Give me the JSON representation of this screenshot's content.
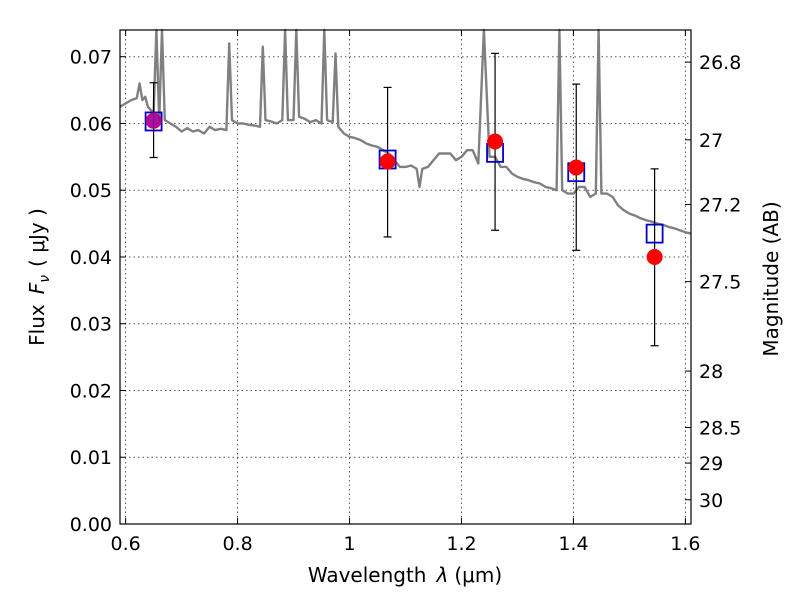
{
  "chart_data": {
    "type": "scatter",
    "xlabel": "Wavelength",
    "xlabel_symbol": "λ",
    "xlabel_unit": "(μm)",
    "ylabel": "Flux",
    "ylabel_symbol": "F",
    "ylabel_subscript": "ν",
    "ylabel_unit": "( μJy )",
    "y2label": "Magnitude (AB)",
    "xlim": [
      0.59,
      1.61
    ],
    "ylim": [
      0.0,
      0.074
    ],
    "grid": true,
    "x_ticks": [
      0.6,
      0.8,
      1.0,
      1.2,
      1.4,
      1.6
    ],
    "x_tick_labels": [
      "0.6",
      "0.8",
      "1",
      "1.2",
      "1.4",
      "1.6"
    ],
    "y_ticks": [
      0.0,
      0.01,
      0.02,
      0.03,
      0.04,
      0.05,
      0.06,
      0.07
    ],
    "y_tick_labels": [
      "0.00",
      "0.01",
      "0.02",
      "0.03",
      "0.04",
      "0.05",
      "0.06",
      "0.07"
    ],
    "y2_ticks": [
      26.8,
      27,
      27.2,
      27.5,
      28,
      28.5,
      29,
      30
    ],
    "y2_tick_labels": [
      "26.8",
      "27",
      "27.2",
      "27.5",
      "28",
      "28.5",
      "29",
      "30"
    ],
    "series": [
      {
        "kind": "spectrum",
        "color": "#808080",
        "x": [
          0.59,
          0.6,
          0.61,
          0.62,
          0.625,
          0.63,
          0.635,
          0.64,
          0.65,
          0.655,
          0.66,
          0.665,
          0.67,
          0.68,
          0.69,
          0.7,
          0.71,
          0.72,
          0.73,
          0.74,
          0.75,
          0.76,
          0.77,
          0.78,
          0.785,
          0.79,
          0.8,
          0.81,
          0.82,
          0.83,
          0.84,
          0.845,
          0.85,
          0.86,
          0.87,
          0.88,
          0.885,
          0.89,
          0.9,
          0.905,
          0.91,
          0.92,
          0.93,
          0.94,
          0.95,
          0.955,
          0.96,
          0.97,
          0.975,
          0.98,
          0.99,
          1.0,
          1.01,
          1.02,
          1.03,
          1.04,
          1.05,
          1.06,
          1.07,
          1.08,
          1.09,
          1.1,
          1.11,
          1.12,
          1.125,
          1.13,
          1.14,
          1.15,
          1.16,
          1.17,
          1.18,
          1.19,
          1.2,
          1.21,
          1.22,
          1.23,
          1.24,
          1.25,
          1.26,
          1.27,
          1.28,
          1.29,
          1.3,
          1.31,
          1.32,
          1.33,
          1.34,
          1.35,
          1.36,
          1.37,
          1.375,
          1.38,
          1.39,
          1.4,
          1.41,
          1.42,
          1.43,
          1.44,
          1.445,
          1.45,
          1.46,
          1.47,
          1.48,
          1.49,
          1.5,
          1.51,
          1.52,
          1.53,
          1.54,
          1.55,
          1.56,
          1.57,
          1.58,
          1.59,
          1.6,
          1.61
        ],
        "y": [
          0.0625,
          0.063,
          0.0635,
          0.0638,
          0.066,
          0.0635,
          0.064,
          0.0625,
          0.0615,
          0.074,
          0.0605,
          0.074,
          0.0605,
          0.06,
          0.0595,
          0.0588,
          0.0593,
          0.0588,
          0.059,
          0.0585,
          0.0595,
          0.059,
          0.0592,
          0.059,
          0.072,
          0.0605,
          0.06,
          0.06,
          0.0598,
          0.0597,
          0.0595,
          0.0715,
          0.0605,
          0.0603,
          0.06,
          0.0605,
          0.074,
          0.0605,
          0.0605,
          0.074,
          0.061,
          0.0607,
          0.0602,
          0.0605,
          0.06,
          0.074,
          0.0605,
          0.0602,
          0.0705,
          0.0595,
          0.0585,
          0.058,
          0.0578,
          0.0575,
          0.057,
          0.0567,
          0.0565,
          0.056,
          0.0555,
          0.0545,
          0.0535,
          0.0535,
          0.0537,
          0.0532,
          0.0505,
          0.0532,
          0.0535,
          0.0545,
          0.0555,
          0.0555,
          0.0555,
          0.0545,
          0.055,
          0.056,
          0.056,
          0.054,
          0.074,
          0.055,
          0.055,
          0.0535,
          0.0535,
          0.0525,
          0.052,
          0.0517,
          0.0515,
          0.0512,
          0.051,
          0.0505,
          0.0503,
          0.05,
          0.074,
          0.05,
          0.0495,
          0.0495,
          0.0505,
          0.0505,
          0.049,
          0.0495,
          0.074,
          0.0495,
          0.0495,
          0.049,
          0.0477,
          0.047,
          0.0465,
          0.0462,
          0.0458,
          0.0455,
          0.0453,
          0.045,
          0.0448,
          0.0445,
          0.0443,
          0.044,
          0.0437,
          0.0435
        ]
      },
      {
        "kind": "observed",
        "color": "#ff0000",
        "marker": "circle",
        "x": [
          0.65,
          1.068,
          1.26,
          1.405,
          1.545
        ],
        "y": [
          0.0604,
          0.0543,
          0.0573,
          0.0534,
          0.04
        ],
        "yerr_low": [
          0.0549,
          0.043,
          0.044,
          0.041,
          0.0267
        ],
        "yerr_high": [
          0.0661,
          0.0654,
          0.0705,
          0.0659,
          0.0532
        ]
      },
      {
        "kind": "model",
        "color": "#0000cc",
        "marker": "open-square",
        "x": [
          0.65,
          1.068,
          1.26,
          1.405,
          1.545
        ],
        "y": [
          0.0603,
          0.0546,
          0.0556,
          0.0527,
          0.0435
        ]
      }
    ]
  }
}
